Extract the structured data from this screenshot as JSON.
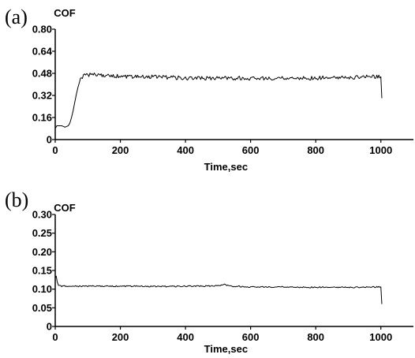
{
  "chart_data": [
    {
      "type": "line",
      "panel_label": "(a)",
      "ylabel": "COF",
      "xlabel": "Time,sec",
      "xlim": [
        0,
        1100
      ],
      "ylim": [
        0,
        0.8
      ],
      "x_ticks": [
        0,
        200,
        400,
        600,
        800,
        1000
      ],
      "y_ticks": [
        0,
        0.16,
        0.32,
        0.48,
        0.64,
        0.8
      ],
      "x_tick_labels": [
        "0",
        "200",
        "400",
        "600",
        "800",
        "1000"
      ],
      "y_tick_labels": [
        "0",
        "0.16",
        "0.32",
        "0.48",
        "0.64",
        "0.80"
      ],
      "grid": false,
      "line_color": "#000000",
      "series": [
        {
          "x": [
            0,
            5,
            10,
            20,
            30,
            40,
            45,
            50,
            55,
            60,
            65,
            70,
            75,
            80,
            90,
            100,
            110,
            120,
            150,
            200,
            250,
            300,
            350,
            400,
            450,
            500,
            550,
            600,
            650,
            700,
            750,
            800,
            850,
            900,
            950,
            1000,
            1003
          ],
          "y": [
            0.08,
            0.1,
            0.1,
            0.1,
            0.09,
            0.1,
            0.12,
            0.16,
            0.21,
            0.27,
            0.33,
            0.38,
            0.42,
            0.45,
            0.47,
            0.47,
            0.47,
            0.47,
            0.465,
            0.46,
            0.455,
            0.455,
            0.45,
            0.445,
            0.445,
            0.445,
            0.445,
            0.445,
            0.445,
            0.445,
            0.445,
            0.445,
            0.45,
            0.45,
            0.455,
            0.455,
            0.3
          ]
        }
      ]
    },
    {
      "type": "line",
      "panel_label": "(b)",
      "ylabel": "COF",
      "xlabel": "Time,sec",
      "xlim": [
        0,
        1100
      ],
      "ylim": [
        0,
        0.3
      ],
      "x_ticks": [
        0,
        200,
        400,
        600,
        800,
        1000
      ],
      "y_ticks": [
        0,
        0.05,
        0.1,
        0.15,
        0.2,
        0.25,
        0.3
      ],
      "x_tick_labels": [
        "0",
        "200",
        "400",
        "600",
        "800",
        "1000"
      ],
      "y_tick_labels": [
        "0",
        "0.05",
        "0.10",
        "0.15",
        "0.20",
        "0.25",
        "0.30"
      ],
      "grid": false,
      "line_color": "#000000",
      "series": [
        {
          "x": [
            0,
            3,
            6,
            10,
            15,
            20,
            50,
            100,
            150,
            200,
            250,
            300,
            350,
            400,
            450,
            500,
            520,
            540,
            600,
            650,
            700,
            750,
            800,
            850,
            900,
            950,
            1000,
            1003
          ],
          "y": [
            0.13,
            0.135,
            0.12,
            0.11,
            0.11,
            0.108,
            0.108,
            0.108,
            0.108,
            0.108,
            0.108,
            0.107,
            0.107,
            0.108,
            0.108,
            0.109,
            0.112,
            0.108,
            0.106,
            0.106,
            0.106,
            0.105,
            0.105,
            0.105,
            0.105,
            0.105,
            0.106,
            0.06
          ]
        }
      ]
    }
  ]
}
